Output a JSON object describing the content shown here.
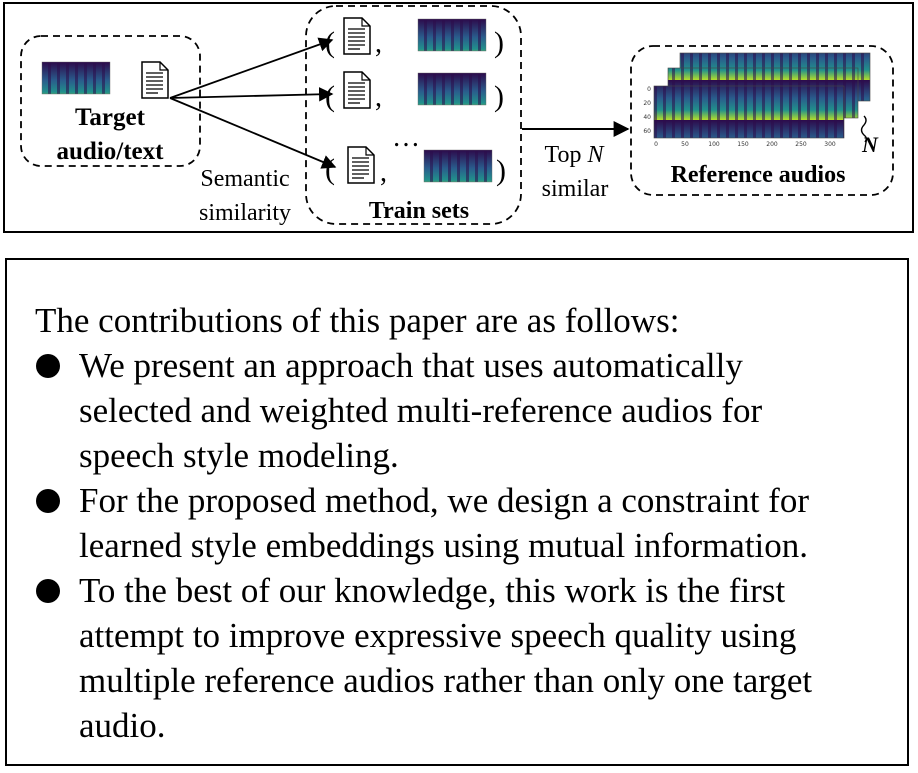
{
  "diagram": {
    "target_label_line1": "Target",
    "target_label_line2": "audio/text",
    "semantic_label_line1": "Semantic",
    "semantic_label_line2": "similarity",
    "train_sets_label": "Train sets",
    "ellipsis": "…",
    "pair_open": "(",
    "pair_comma": ",",
    "pair_close": ")",
    "top_label_prefix": "Top ",
    "top_label_var": "N",
    "similar_label": "similar",
    "reference_label": "Reference audios",
    "n_label": "N",
    "spectro_ticks": [
      "0",
      "50",
      "100",
      "150",
      "200",
      "250",
      "300"
    ],
    "spectro_yticks": [
      "0",
      "20",
      "40",
      "60"
    ],
    "colors": {
      "spectro_dark": "#2c0a4b",
      "spectro_mid": "#21908c",
      "spectro_bright": "#b5de2b"
    }
  },
  "contributions": {
    "intro": "The contributions of this paper are as follows:",
    "items": [
      {
        "lines": [
          "We present an approach that uses automatically",
          "selected and weighted multi-reference audios for",
          "speech style modeling."
        ]
      },
      {
        "lines": [
          "For the proposed method, we design a constraint for",
          "learned style embeddings using mutual information."
        ]
      },
      {
        "lines": [
          "To the best of our knowledge, this work is the first",
          "attempt to improve expressive speech quality using",
          "multiple reference audios rather than only one target",
          "audio."
        ]
      }
    ]
  }
}
